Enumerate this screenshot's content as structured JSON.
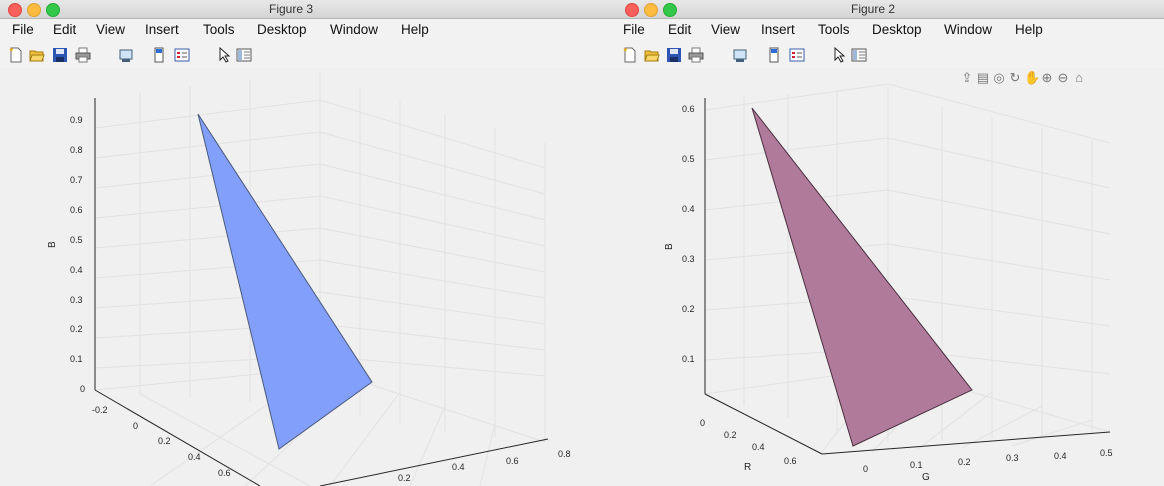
{
  "windows": [
    {
      "title": "Figure 3",
      "menu": [
        "File",
        "Edit",
        "View",
        "Insert",
        "Tools",
        "Desktop",
        "Window",
        "Help"
      ],
      "toolbar_icons": [
        "new-file-icon",
        "open-file-icon",
        "save-icon",
        "print-icon",
        "link-plot-icon",
        "colorbar-icon",
        "legend-icon",
        "pointer-icon",
        "property-inspector-icon"
      ],
      "plot": {
        "zlabel": "B",
        "z_ticks": [
          "0",
          "0.1",
          "0.2",
          "0.3",
          "0.4",
          "0.5",
          "0.6",
          "0.7",
          "0.8",
          "0.9"
        ],
        "r_ticks": [
          "-0.2",
          "0",
          "0.2",
          "0.4",
          "0.6"
        ],
        "g_ticks": [
          "0.2",
          "0.4",
          "0.6",
          "0.8"
        ],
        "fill_color": "#829ffb",
        "edge_color": "#4a5a7a"
      }
    },
    {
      "title": "Figure 2",
      "menu": [
        "File",
        "Edit",
        "View",
        "Insert",
        "Tools",
        "Desktop",
        "Window",
        "Help"
      ],
      "toolbar_icons": [
        "new-file-icon",
        "open-file-icon",
        "save-icon",
        "print-icon",
        "link-plot-icon",
        "colorbar-icon",
        "legend-icon",
        "pointer-icon",
        "property-inspector-icon"
      ],
      "axes_toolbar_icons": [
        "export-icon",
        "brush-icon",
        "data-tip-icon",
        "rotate-icon",
        "pan-icon",
        "zoom-in-icon",
        "zoom-out-icon",
        "home-icon"
      ],
      "plot": {
        "zlabel": "B",
        "xlabel": "R",
        "ylabel": "G",
        "z_ticks": [
          "0.1",
          "0.2",
          "0.3",
          "0.4",
          "0.5",
          "0.6"
        ],
        "r_ticks": [
          "0",
          "0.2",
          "0.4",
          "0.6"
        ],
        "g_ticks": [
          "0",
          "0.1",
          "0.2",
          "0.3",
          "0.4",
          "0.5"
        ],
        "fill_color": "#b07b9b",
        "edge_color": "#4a3040"
      }
    }
  ]
}
